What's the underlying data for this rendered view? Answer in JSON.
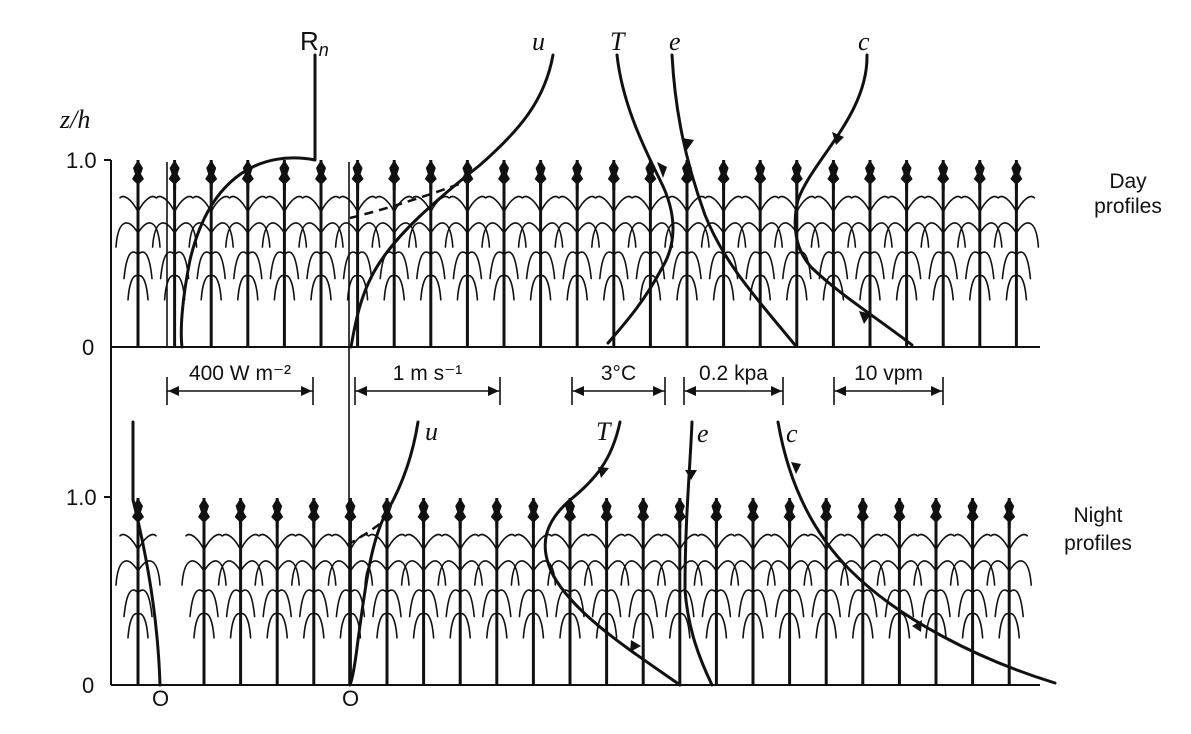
{
  "axis": {
    "ylabel": "z/h",
    "day_ticks": [
      "1.0",
      "0"
    ],
    "night_ticks": [
      "1.0",
      "0"
    ],
    "origin_labels": [
      "O",
      "O"
    ]
  },
  "panels": {
    "day": "Day profiles",
    "night": "Night profiles"
  },
  "curve_labels": {
    "day": [
      "Rn",
      "u",
      "T",
      "e",
      "c"
    ],
    "night": [
      "u",
      "T",
      "e",
      "c"
    ]
  },
  "scales": [
    {
      "label": "400 W m⁻²"
    },
    {
      "label": "1 m s⁻¹"
    },
    {
      "label": "3°C"
    },
    {
      "label": "0.2 kpa"
    },
    {
      "label": "10 vpm"
    }
  ],
  "plants": {
    "day_count": 25,
    "night_count": 24
  }
}
